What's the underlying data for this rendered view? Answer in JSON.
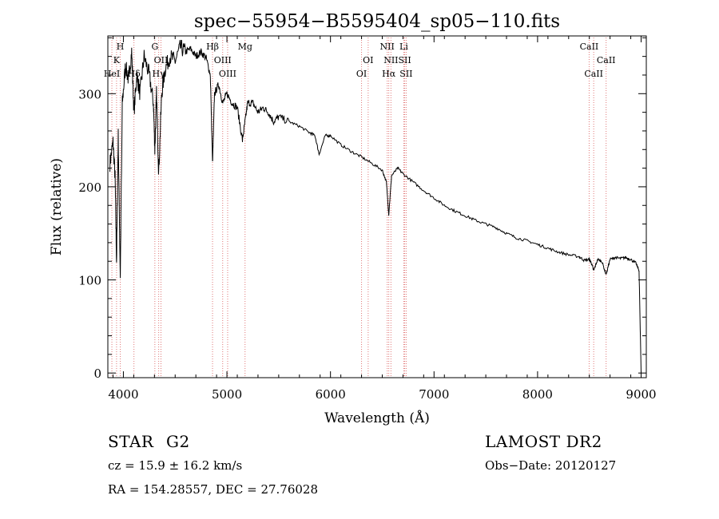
{
  "chart_data": {
    "type": "line",
    "title": "spec−55954−B5595404_sp05−110.fits",
    "xlabel": "Wavelength (Å)",
    "ylabel": "Flux (relative)",
    "xlim": [
      3850,
      9050
    ],
    "ylim": [
      -5,
      362
    ],
    "xticks": [
      4000,
      5000,
      6000,
      7000,
      8000,
      9000
    ],
    "yticks": [
      0,
      100,
      200,
      300
    ],
    "grid": false,
    "line_color": "#000000",
    "marker_color": "#e07878",
    "spectral_lines": [
      {
        "label": "H",
        "wavelength": 3970,
        "row": 1
      },
      {
        "label": "K",
        "wavelength": 3934,
        "row": 2
      },
      {
        "label": "HeI",
        "wavelength": 3889,
        "row": 3
      },
      {
        "label": "Hδ",
        "wavelength": 4102,
        "row": 3
      },
      {
        "label": "G",
        "wavelength": 4304,
        "row": 1
      },
      {
        "label": "OII",
        "wavelength": 4363,
        "row": 2
      },
      {
        "label": "Hγ",
        "wavelength": 4341,
        "row": 3
      },
      {
        "label": "Hβ",
        "wavelength": 4861,
        "row": 1
      },
      {
        "label": "OIII",
        "wavelength": 4959,
        "row": 2
      },
      {
        "label": "OIII",
        "wavelength": 5007,
        "row": 3
      },
      {
        "label": "Mg",
        "wavelength": 5175,
        "row": 1
      },
      {
        "label": "OI",
        "wavelength": 6364,
        "row": 2
      },
      {
        "label": "OI",
        "wavelength": 6300,
        "row": 3
      },
      {
        "label": "NII",
        "wavelength": 6548,
        "row": 1
      },
      {
        "label": "Li",
        "wavelength": 6708,
        "row": 1
      },
      {
        "label": "NII",
        "wavelength": 6584,
        "row": 2
      },
      {
        "label": "SII",
        "wavelength": 6717,
        "row": 2
      },
      {
        "label": "Hα",
        "wavelength": 6563,
        "row": 3
      },
      {
        "label": "SII",
        "wavelength": 6731,
        "row": 3
      },
      {
        "label": "CaII",
        "wavelength": 8498,
        "row": 1
      },
      {
        "label": "CaII",
        "wavelength": 8662,
        "row": 2
      },
      {
        "label": "CaII",
        "wavelength": 8542,
        "row": 3
      }
    ],
    "series": [
      {
        "x": [
          3870,
          3900,
          3920,
          3934,
          3950,
          3970,
          3990,
          4020,
          4050,
          4080,
          4102,
          4130,
          4160,
          4200,
          4250,
          4290,
          4304,
          4320,
          4341,
          4370,
          4400,
          4450,
          4500,
          4550,
          4600,
          4650,
          4700,
          4750,
          4800,
          4840,
          4861,
          4880,
          4920,
          4960,
          5000,
          5050,
          5100,
          5150,
          5175,
          5200,
          5250,
          5300,
          5350,
          5400,
          5450,
          5500,
          5600,
          5700,
          5800,
          5850,
          5890,
          5950,
          6000,
          6100,
          6200,
          6300,
          6400,
          6500,
          6540,
          6563,
          6590,
          6650,
          6700,
          6800,
          6900,
          7000,
          7100,
          7200,
          7300,
          7400,
          7500,
          7600,
          7700,
          7800,
          7900,
          8000,
          8100,
          8200,
          8300,
          8400,
          8450,
          8498,
          8520,
          8542,
          8580,
          8620,
          8662,
          8700,
          8750,
          8800,
          8850,
          8900,
          8950,
          8980,
          9000
        ],
        "y": [
          225,
          248,
          210,
          120,
          255,
          105,
          290,
          330,
          315,
          345,
          280,
          320,
          300,
          340,
          320,
          290,
          240,
          300,
          215,
          300,
          325,
          340,
          335,
          350,
          345,
          348,
          340,
          345,
          338,
          320,
          225,
          300,
          310,
          290,
          300,
          290,
          285,
          250,
          270,
          290,
          290,
          280,
          285,
          280,
          270,
          275,
          270,
          265,
          258,
          255,
          235,
          255,
          255,
          245,
          238,
          232,
          225,
          218,
          205,
          170,
          212,
          220,
          214,
          205,
          196,
          188,
          180,
          174,
          169,
          164,
          160,
          156,
          150,
          145,
          142,
          138,
          134,
          130,
          127,
          125,
          121,
          122,
          118,
          110,
          122,
          120,
          106,
          122,
          124,
          123,
          124,
          122,
          118,
          110,
          0
        ]
      }
    ]
  },
  "annotations": {
    "object_type": "STAR",
    "subclass": "G2",
    "survey": "LAMOST DR2",
    "redshift": "cz = 15.9 ± 16.2 km/s",
    "obs_date": "Obs−Date: 20120127",
    "coords": "RA = 154.28557, DEC =  27.76028"
  }
}
